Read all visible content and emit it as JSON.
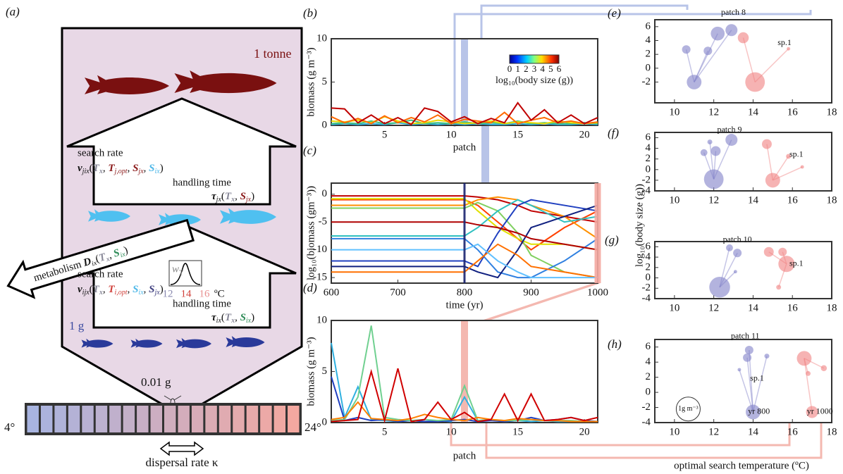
{
  "figure": {
    "panel_labels": [
      "(a)",
      "(b)",
      "(c)",
      "(d)",
      "(e)",
      "(f)",
      "(g)",
      "(h)"
    ],
    "right_ylabel": "log₁₀(body size (g))",
    "right_xlabel": "optimal search temperature (ºC)"
  },
  "diagram": {
    "top_mass": "1 tonne",
    "mid_mass": "1 g",
    "bottom_mass": "0.01 g",
    "search_rate_top": "search rate",
    "handling_time_top": "handling time",
    "formula_top": [
      {
        "text": "v"
      },
      {
        "text": "jix",
        "sub": true
      },
      {
        "text": "("
      },
      {
        "text": "T",
        "color": "#8a8a9a"
      },
      {
        "text": "x",
        "sub": true,
        "color": "#8a8a9a"
      },
      {
        "text": ", "
      },
      {
        "text": "T",
        "color": "#8b1a1a"
      },
      {
        "text": "j,opt",
        "sub": true,
        "color": "#8b1a1a"
      },
      {
        "text": ", "
      },
      {
        "text": "S",
        "color": "#8b1a1a"
      },
      {
        "text": "jx",
        "sub": true,
        "color": "#8b1a1a"
      },
      {
        "text": ", "
      },
      {
        "text": "S",
        "color": "#4fb8e8"
      },
      {
        "text": "ix",
        "sub": true,
        "color": "#4fb8e8"
      },
      {
        "text": ")"
      }
    ],
    "tau_top": [
      {
        "text": "τ"
      },
      {
        "text": "jx",
        "sub": true
      },
      {
        "text": "("
      },
      {
        "text": "T",
        "color": "#8a8a9a"
      },
      {
        "text": "x",
        "sub": true,
        "color": "#8a8a9a"
      },
      {
        "text": ", "
      },
      {
        "text": "S",
        "color": "#8b1a1a"
      },
      {
        "text": "jx",
        "sub": true,
        "color": "#8b1a1a"
      },
      {
        "text": ")"
      }
    ],
    "metabolism": [
      {
        "text": "metabolism "
      },
      {
        "text": "D"
      },
      {
        "text": "ix",
        "sub": true
      },
      {
        "text": "("
      },
      {
        "text": "T",
        "color": "#8a8a9a"
      },
      {
        "text": "x",
        "sub": true,
        "color": "#8a8a9a"
      },
      {
        "text": ", "
      },
      {
        "text": "S",
        "color": "#2e8b57"
      },
      {
        "text": "ix",
        "sub": true,
        "color": "#2e8b57"
      },
      {
        "text": ")"
      }
    ],
    "search_rate_bottom": "search rate",
    "handling_time_bottom": "handling time",
    "formula_bottom": [
      {
        "text": "v"
      },
      {
        "text": "ijx",
        "sub": true
      },
      {
        "text": "("
      },
      {
        "text": "T",
        "color": "#8a8a9a"
      },
      {
        "text": "x",
        "sub": true,
        "color": "#8a8a9a"
      },
      {
        "text": ", "
      },
      {
        "text": "T",
        "color": "#d0403a"
      },
      {
        "text": "i,opt",
        "sub": true,
        "color": "#d0403a"
      },
      {
        "text": ", "
      },
      {
        "text": "S",
        "color": "#4fb8e8"
      },
      {
        "text": "ix",
        "sub": true,
        "color": "#4fb8e8"
      },
      {
        "text": ", "
      },
      {
        "text": "S",
        "color": "#404080"
      },
      {
        "text": "jx",
        "sub": true,
        "color": "#404080"
      },
      {
        "text": ")"
      }
    ],
    "tau_bottom": [
      {
        "text": "τ"
      },
      {
        "text": "ix",
        "sub": true
      },
      {
        "text": "("
      },
      {
        "text": "T",
        "color": "#8a8a9a"
      },
      {
        "text": "x",
        "sub": true,
        "color": "#8a8a9a"
      },
      {
        "text": ", "
      },
      {
        "text": "S",
        "color": "#2e8b57"
      },
      {
        "text": "ix",
        "sub": true,
        "color": "#2e8b57"
      },
      {
        "text": ")"
      }
    ],
    "inset_w": "w",
    "inset_sub": "T",
    "inset_ticks": [
      "12",
      "14",
      "16"
    ],
    "inset_unit": "ºC",
    "cold": "4°",
    "warm": "24°",
    "dispersal": "dispersal rate κ"
  },
  "chart_data": [
    {
      "type": "line",
      "xlabel": "patch",
      "ylabel": "biomass (g m⁻³)",
      "xlim": [
        1,
        21
      ],
      "ylim": [
        0,
        10
      ],
      "xticks": [
        5,
        10,
        15,
        20
      ],
      "yticks": [
        0,
        5,
        10
      ],
      "highlight": 11,
      "highlight_color": "#b8c4e8",
      "colorbar": {
        "ticks": [
          0,
          1,
          2,
          3,
          4,
          5,
          6
        ],
        "label": "log₁₀(body size (g))"
      },
      "x": [
        1,
        2,
        3,
        4,
        5,
        6,
        7,
        8,
        9,
        10,
        11,
        12,
        13,
        14,
        15,
        16,
        17,
        18,
        19,
        20,
        21
      ],
      "series": [
        {
          "color": "#30b0e0",
          "values": [
            0.1,
            0.2,
            0.1,
            0.2,
            0.1,
            0.3,
            0.1,
            0.2,
            0.1,
            0.2,
            0.1,
            0.2,
            0.1,
            0.1,
            0.2,
            0.1,
            0.2,
            0.1,
            0.1,
            0.2,
            0.1
          ]
        },
        {
          "color": "#40c080",
          "values": [
            0.2,
            0.3,
            0.2,
            0.5,
            0.2,
            0.3,
            0.6,
            0.2,
            0.3,
            0.2,
            0.4,
            0.2,
            0.3,
            0.2,
            0.5,
            0.2,
            0.3,
            0.2,
            0.2,
            0.3,
            0.2
          ]
        },
        {
          "color": "#e8d800",
          "values": [
            0.5,
            0.4,
            0.6,
            0.3,
            1.0,
            0.5,
            0.2,
            0.3,
            0.6,
            0.4,
            0.2,
            0.3,
            0.5,
            0.2,
            0.4,
            0.3,
            0.2,
            0.5,
            0.3,
            0.2,
            0.3
          ]
        },
        {
          "color": "#ff6a00",
          "values": [
            1.0,
            0.3,
            0.8,
            0.2,
            1.1,
            0.3,
            0.9,
            0.4,
            1.2,
            0.2,
            0.7,
            0.5,
            0.3,
            1.5,
            0.2,
            0.6,
            0.9,
            0.3,
            0.5,
            0.2,
            0.4
          ]
        },
        {
          "color": "#c00000",
          "values": [
            2.0,
            1.9,
            0.3,
            1.2,
            0.2,
            0.9,
            0.1,
            2.0,
            1.6,
            0.4,
            1.0,
            0.2,
            0.8,
            0.3,
            2.6,
            0.6,
            1.8,
            0.3,
            1.2,
            0.2,
            0.9
          ]
        }
      ]
    },
    {
      "type": "line",
      "xlabel": "time (yr)",
      "ylabel": "log₁₀(biomass (gm⁻³))",
      "xlim": [
        600,
        1000
      ],
      "ylim": [
        -16,
        2
      ],
      "xticks": [
        600,
        700,
        800,
        900,
        1000
      ],
      "yticks": [
        -15,
        -10,
        -5,
        0
      ],
      "markers": [
        800,
        1000
      ],
      "marker_colors": [
        "#1a2470",
        "#f4a8a0"
      ],
      "x": [
        600,
        700,
        790,
        800,
        820,
        850,
        880,
        900,
        950,
        1000
      ],
      "series": [
        {
          "color": "#c00000",
          "values": [
            -0.3,
            -0.3,
            -0.3,
            -0.3,
            -0.5,
            -1,
            -2,
            -3,
            -4,
            -5
          ]
        },
        {
          "color": "#ff4000",
          "values": [
            -1,
            -1,
            -1,
            -1,
            -2,
            -5,
            -8,
            -10,
            -6,
            -3
          ]
        },
        {
          "color": "#ff9000",
          "values": [
            -2,
            -2,
            -2,
            -2,
            -1,
            -0.5,
            -1,
            -2,
            -4,
            -8
          ]
        },
        {
          "color": "#e0e000",
          "values": [
            -0.8,
            -0.8,
            -0.8,
            -0.8,
            -3,
            -6,
            -8,
            -9,
            -9,
            -10
          ]
        },
        {
          "color": "#80d060",
          "values": [
            -2.5,
            -2.5,
            -2.5,
            -2.5,
            -1.5,
            -3,
            -7,
            -11,
            -14,
            -15
          ]
        },
        {
          "color": "#30c0c0",
          "values": [
            -7.5,
            -7.5,
            -7.5,
            -7.5,
            -6,
            -3,
            -1,
            -2,
            -5,
            -4
          ]
        },
        {
          "color": "#3080e0",
          "values": [
            -8,
            -8,
            -8,
            -8,
            -10,
            -14,
            -15,
            -15,
            -12,
            -8
          ]
        },
        {
          "color": "#2040c0",
          "values": [
            -12,
            -12,
            -12,
            -12,
            -13,
            -7,
            -2,
            -1,
            -2,
            -3
          ]
        },
        {
          "color": "#102080",
          "values": [
            -13,
            -13,
            -13,
            -13,
            -14,
            -15,
            -10,
            -6,
            -4,
            -2
          ]
        },
        {
          "color": "#b00000",
          "values": [
            -5,
            -5,
            -5,
            -5,
            -5.5,
            -6,
            -7,
            -8,
            -9,
            -10
          ]
        },
        {
          "color": "#ff7000",
          "values": [
            -14,
            -14,
            -14,
            -14,
            -12,
            -9,
            -11,
            -13,
            -14,
            -15
          ]
        },
        {
          "color": "#60c0ff",
          "values": [
            -10,
            -10,
            -10,
            -10,
            -9,
            -12,
            -14,
            -15,
            -15,
            -15
          ]
        }
      ]
    },
    {
      "type": "line",
      "xlabel": "patch",
      "ylabel": "biomass (g m⁻³)",
      "xlim": [
        1,
        21
      ],
      "ylim": [
        0,
        10
      ],
      "xticks": [
        5,
        10,
        15,
        20
      ],
      "yticks": [
        0,
        5,
        10
      ],
      "highlight": 11,
      "highlight_color": "#f4b8b0",
      "x": [
        1,
        2,
        3,
        4,
        5,
        6,
        7,
        8,
        9,
        10,
        11,
        12,
        13,
        14,
        15,
        16,
        17,
        18,
        19,
        20,
        21
      ],
      "series": [
        {
          "color": "#30b0e0",
          "values": [
            7.8,
            0.5,
            3.5,
            0.3,
            0.2,
            0.1,
            0.2,
            0.1,
            0.2,
            0.1,
            2.5,
            0.2,
            0.3,
            0.1,
            0.2,
            0.1,
            0.2,
            0.1,
            0.1,
            0.1,
            0.1
          ]
        },
        {
          "color": "#2040c0",
          "values": [
            4.5,
            0.2,
            0.5,
            0.2,
            0.3,
            0.1,
            0.2,
            0.1,
            0.1,
            0.2,
            0.3,
            0.1,
            0.2,
            0.1,
            0.2,
            0.5,
            0.2,
            0.3,
            0.5,
            0.2,
            0.1
          ]
        },
        {
          "color": "#70d090",
          "values": [
            0.2,
            0.3,
            2.5,
            9.5,
            0.5,
            0.3,
            0.2,
            0.3,
            0.2,
            0.3,
            3.6,
            0.2,
            0.3,
            0.2,
            0.2,
            0.3,
            0.2,
            0.2,
            0.2,
            0.1,
            0.1
          ]
        },
        {
          "color": "#ff8000",
          "values": [
            0.3,
            0.5,
            2.0,
            0.4,
            0.3,
            0.2,
            0.4,
            0.8,
            0.5,
            0.3,
            0.2,
            0.5,
            0.3,
            0.2,
            0.4,
            0.3,
            0.2,
            0.2,
            0.1,
            0.1,
            0.1
          ]
        },
        {
          "color": "#d00000",
          "values": [
            0.1,
            0.2,
            0.3,
            5.0,
            0.2,
            5.3,
            0.1,
            0.3,
            2.0,
            0.3,
            1.0,
            0.1,
            0.3,
            2.8,
            0.2,
            2.8,
            0.2,
            0.3,
            0.5,
            0.2,
            0.5
          ]
        }
      ]
    },
    {
      "type": "bubble",
      "xlim": [
        9,
        18
      ],
      "ylim": [
        -5,
        7
      ],
      "xticks": [
        10,
        12,
        14,
        16,
        18
      ],
      "yticks": [
        -2,
        0,
        2,
        4,
        6
      ],
      "annotations": [
        "patch 8",
        "sp.1"
      ],
      "series": [
        {
          "color": "#8080c8",
          "x": [
            10.6,
            11.0,
            11.7,
            12.2,
            12.9
          ],
          "values": [
            2.7,
            -2.0,
            2.5,
            5.0,
            5.5
          ],
          "sizes": [
            0.3,
            0.9,
            0.3,
            0.8,
            0.6
          ]
        },
        {
          "color": "#f08080",
          "x": [
            13.5,
            14.1,
            15.8
          ],
          "values": [
            4.4,
            -2.0,
            2.8
          ],
          "sizes": [
            0.5,
            1.6,
            0.05
          ]
        }
      ]
    },
    {
      "type": "bubble",
      "xlim": [
        9,
        18
      ],
      "ylim": [
        -4,
        7
      ],
      "xticks": [
        10,
        12,
        14,
        16,
        18
      ],
      "yticks": [
        -4,
        -2,
        0,
        2,
        4,
        6
      ],
      "annotations": [
        "patch 9",
        "sp.1"
      ],
      "series": [
        {
          "color": "#8080c8",
          "x": [
            11.5,
            12.0,
            12.9,
            12.1,
            11.8
          ],
          "values": [
            3.2,
            -1.8,
            5.6,
            3.5,
            5.2
          ],
          "sizes": [
            0.2,
            1.6,
            0.6,
            0.4,
            0.1
          ]
        },
        {
          "color": "#f08080",
          "x": [
            14.7,
            15.0,
            15.8,
            16.5
          ],
          "values": [
            4.8,
            -2.0,
            2.5,
            0.5
          ],
          "sizes": [
            0.4,
            0.9,
            0.1,
            0.05
          ]
        }
      ]
    },
    {
      "type": "bubble",
      "xlim": [
        9,
        18
      ],
      "ylim": [
        -4,
        7
      ],
      "xticks": [
        10,
        12,
        14,
        16,
        18
      ],
      "yticks": [
        -4,
        -2,
        0,
        2,
        4,
        6
      ],
      "annotations": [
        "patch 10",
        "sp.1"
      ],
      "series": [
        {
          "color": "#8080c8",
          "x": [
            12.8,
            13.2,
            12.3,
            13.1
          ],
          "values": [
            5.8,
            4.8,
            -1.8,
            1.2
          ],
          "sizes": [
            0.2,
            0.3,
            1.8,
            0.05
          ]
        },
        {
          "color": "#f08080",
          "x": [
            14.8,
            15.5,
            15.7,
            15.3
          ],
          "values": [
            5.0,
            5.0,
            2.7,
            -1.8
          ],
          "sizes": [
            0.4,
            0.3,
            1.1,
            0.1
          ]
        }
      ]
    },
    {
      "type": "bubble",
      "xlim": [
        9,
        18
      ],
      "ylim": [
        -4,
        7
      ],
      "xticks": [
        10,
        12,
        14,
        16,
        18
      ],
      "yticks": [
        -4,
        -2,
        0,
        2,
        4,
        6
      ],
      "annotations": [
        "patch 11",
        "sp.1",
        "yr 800",
        "yr 1000"
      ],
      "size_legend": {
        "size": 1,
        "label": "1g m⁻³"
      },
      "series": [
        {
          "color": "#8080c8",
          "x": [
            13.8,
            13.7,
            14.0,
            14.7,
            13.3
          ],
          "values": [
            5.6,
            4.6,
            -2.6,
            4.8,
            3.0
          ],
          "sizes": [
            0.3,
            0.3,
            0.9,
            0.1,
            0.05
          ]
        },
        {
          "color": "#f08080",
          "x": [
            16.6,
            17.0,
            17.6,
            16.8
          ],
          "values": [
            4.5,
            -2.6,
            3.2,
            2.5
          ],
          "sizes": [
            0.9,
            0.6,
            0.15,
            0.1
          ]
        }
      ]
    }
  ]
}
